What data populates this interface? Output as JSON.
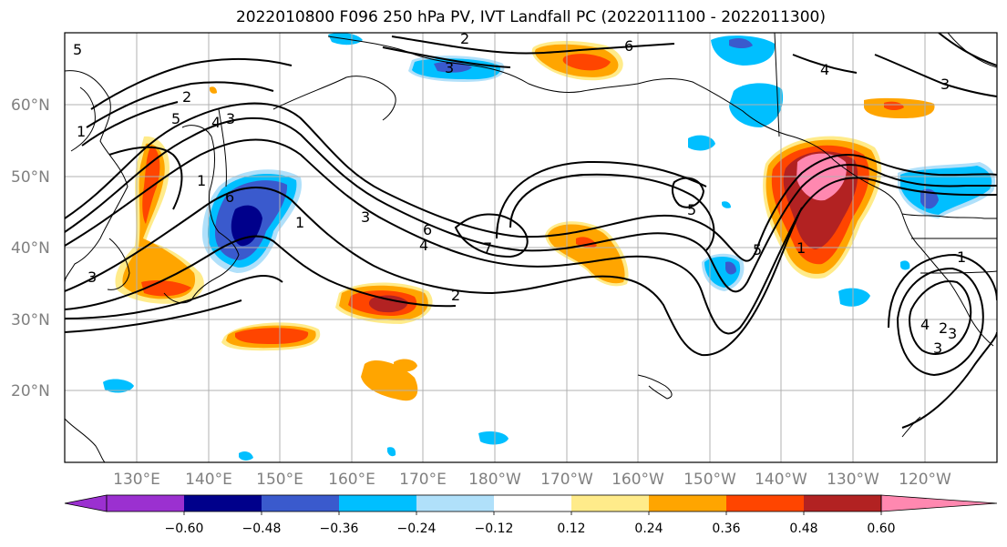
{
  "title": "2022010800 F096 250 hPa PV, IVT Landfall PC (2022011100 - 2022011300)",
  "map": {
    "lat_labels": [
      "60°N",
      "50°N",
      "40°N",
      "30°N",
      "20°N"
    ],
    "lon_labels": [
      "130°E",
      "140°E",
      "150°E",
      "160°E",
      "170°E",
      "180°W",
      "170°W",
      "160°W",
      "150°W",
      "140°W",
      "130°W",
      "120°W"
    ],
    "contour_labels": [
      "2",
      "6",
      "3",
      "4",
      "3",
      "5",
      "4",
      "3",
      "2",
      "1",
      "5",
      "1",
      "6",
      "3",
      "4",
      "6",
      "7",
      "2",
      "5",
      "5",
      "1",
      "1",
      "2",
      "3",
      "3",
      "4",
      "1",
      "3"
    ]
  },
  "colorbar": {
    "ticks": [
      "−0.60",
      "−0.48",
      "−0.36",
      "−0.24",
      "−0.12",
      "0.12",
      "0.24",
      "0.36",
      "0.48",
      "0.60"
    ],
    "colors": {
      "under": "#9b30d0",
      "neg060": "#00008b",
      "neg048": "#3a5acd",
      "neg036": "#00bfff",
      "neg024": "#b0e0fa",
      "neutral": "#ffffff",
      "pos012": "#ffeb8a",
      "pos024": "#ffa500",
      "pos036": "#ff4500",
      "pos048": "#b22222",
      "over": "#ff88b0"
    }
  }
}
